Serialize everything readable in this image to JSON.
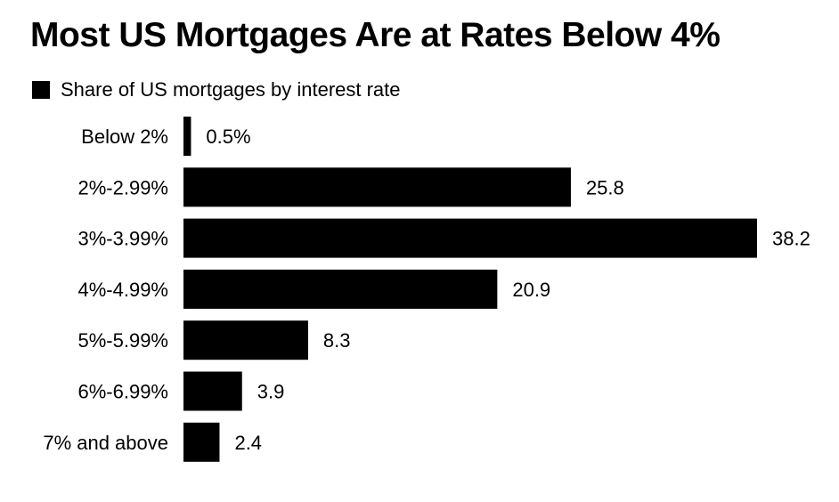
{
  "chart_data": {
    "type": "bar",
    "orientation": "horizontal",
    "title": "Most US Mortgages Are at Rates Below 4%",
    "legend": [
      "Share of US mortgages by interest rate"
    ],
    "legend_placement": "top-left",
    "categories": [
      "Below 2%",
      "2%-2.99%",
      "3%-3.99%",
      "4%-4.99%",
      "5%-5.99%",
      "6%-6.99%",
      "7% and above"
    ],
    "values": [
      0.5,
      25.8,
      38.2,
      20.9,
      8.3,
      3.9,
      2.4
    ],
    "value_labels": [
      "0.5%",
      "25.8",
      "38.2",
      "20.9",
      "8.3",
      "3.9",
      "2.4"
    ],
    "xlabel": "",
    "ylabel": "",
    "xlim": [
      0,
      38.2
    ],
    "grid": false,
    "bar_color": "#000000"
  }
}
